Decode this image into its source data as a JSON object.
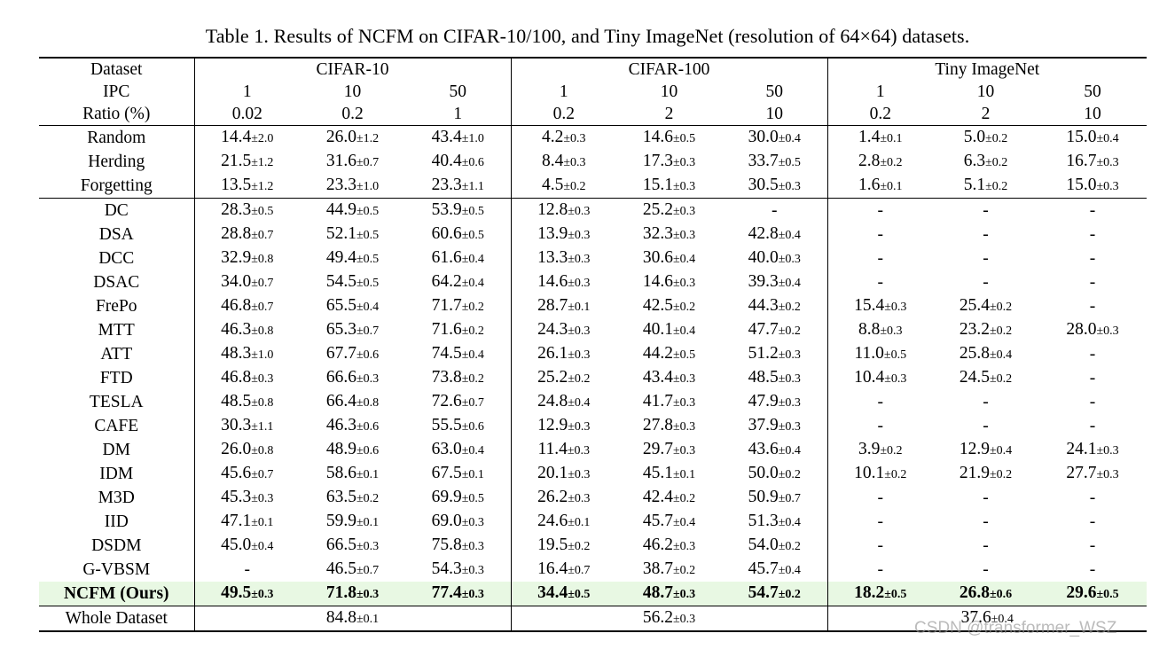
{
  "caption": "Table 1. Results of NCFM on CIFAR-10/100, and Tiny ImageNet (resolution of 64×64) datasets.",
  "header": {
    "dataset_label": "Dataset",
    "ipc_label": "IPC",
    "ratio_label": "Ratio (%)",
    "groups": [
      {
        "name": "CIFAR-10",
        "ipc": [
          "1",
          "10",
          "50"
        ],
        "ratio": [
          "0.02",
          "0.2",
          "1"
        ]
      },
      {
        "name": "CIFAR-100",
        "ipc": [
          "1",
          "10",
          "50"
        ],
        "ratio": [
          "0.2",
          "2",
          "10"
        ]
      },
      {
        "name": "Tiny ImageNet",
        "ipc": [
          "1",
          "10",
          "50"
        ],
        "ratio": [
          "0.2",
          "2",
          "10"
        ]
      }
    ]
  },
  "baselines": [
    {
      "method": "Random",
      "cells": [
        [
          "14.4",
          "±2.0"
        ],
        [
          "26.0",
          "±1.2"
        ],
        [
          "43.4",
          "±1.0"
        ],
        [
          "4.2",
          "±0.3"
        ],
        [
          "14.6",
          "±0.5"
        ],
        [
          "30.0",
          "±0.4"
        ],
        [
          "1.4",
          "±0.1"
        ],
        [
          "5.0",
          "±0.2"
        ],
        [
          "15.0",
          "±0.4"
        ]
      ]
    },
    {
      "method": "Herding",
      "cells": [
        [
          "21.5",
          "±1.2"
        ],
        [
          "31.6",
          "±0.7"
        ],
        [
          "40.4",
          "±0.6"
        ],
        [
          "8.4",
          "±0.3"
        ],
        [
          "17.3",
          "±0.3"
        ],
        [
          "33.7",
          "±0.5"
        ],
        [
          "2.8",
          "±0.2"
        ],
        [
          "6.3",
          "±0.2"
        ],
        [
          "16.7",
          "±0.3"
        ]
      ]
    },
    {
      "method": "Forgetting",
      "cells": [
        [
          "13.5",
          "±1.2"
        ],
        [
          "23.3",
          "±1.0"
        ],
        [
          "23.3",
          "±1.1"
        ],
        [
          "4.5",
          "±0.2"
        ],
        [
          "15.1",
          "±0.3"
        ],
        [
          "30.5",
          "±0.3"
        ],
        [
          "1.6",
          "±0.1"
        ],
        [
          "5.1",
          "±0.2"
        ],
        [
          "15.0",
          "±0.3"
        ]
      ]
    }
  ],
  "methods": [
    {
      "method": "DC",
      "cells": [
        [
          "28.3",
          "±0.5"
        ],
        [
          "44.9",
          "±0.5"
        ],
        [
          "53.9",
          "±0.5"
        ],
        [
          "12.8",
          "±0.3"
        ],
        [
          "25.2",
          "±0.3"
        ],
        [
          "-",
          ""
        ],
        [
          "-",
          ""
        ],
        [
          "-",
          ""
        ],
        [
          "-",
          ""
        ]
      ]
    },
    {
      "method": "DSA",
      "cells": [
        [
          "28.8",
          "±0.7"
        ],
        [
          "52.1",
          "±0.5"
        ],
        [
          "60.6",
          "±0.5"
        ],
        [
          "13.9",
          "±0.3"
        ],
        [
          "32.3",
          "±0.3"
        ],
        [
          "42.8",
          "±0.4"
        ],
        [
          "-",
          ""
        ],
        [
          "-",
          ""
        ],
        [
          "-",
          ""
        ]
      ]
    },
    {
      "method": "DCC",
      "cells": [
        [
          "32.9",
          "±0.8"
        ],
        [
          "49.4",
          "±0.5"
        ],
        [
          "61.6",
          "±0.4"
        ],
        [
          "13.3",
          "±0.3"
        ],
        [
          "30.6",
          "±0.4"
        ],
        [
          "40.0",
          "±0.3"
        ],
        [
          "-",
          ""
        ],
        [
          "-",
          ""
        ],
        [
          "-",
          ""
        ]
      ]
    },
    {
      "method": "DSAC",
      "cells": [
        [
          "34.0",
          "±0.7"
        ],
        [
          "54.5",
          "±0.5"
        ],
        [
          "64.2",
          "±0.4"
        ],
        [
          "14.6",
          "±0.3"
        ],
        [
          "14.6",
          "±0.3"
        ],
        [
          "39.3",
          "±0.4"
        ],
        [
          "-",
          ""
        ],
        [
          "-",
          ""
        ],
        [
          "-",
          ""
        ]
      ]
    },
    {
      "method": "FrePo",
      "cells": [
        [
          "46.8",
          "±0.7"
        ],
        [
          "65.5",
          "±0.4"
        ],
        [
          "71.7",
          "±0.2"
        ],
        [
          "28.7",
          "±0.1"
        ],
        [
          "42.5",
          "±0.2"
        ],
        [
          "44.3",
          "±0.2"
        ],
        [
          "15.4",
          "±0.3"
        ],
        [
          "25.4",
          "±0.2"
        ],
        [
          "-",
          ""
        ]
      ]
    },
    {
      "method": "MTT",
      "cells": [
        [
          "46.3",
          "±0.8"
        ],
        [
          "65.3",
          "±0.7"
        ],
        [
          "71.6",
          "±0.2"
        ],
        [
          "24.3",
          "±0.3"
        ],
        [
          "40.1",
          "±0.4"
        ],
        [
          "47.7",
          "±0.2"
        ],
        [
          "8.8",
          "±0.3"
        ],
        [
          "23.2",
          "±0.2"
        ],
        [
          "28.0",
          "±0.3"
        ]
      ]
    },
    {
      "method": "ATT",
      "cells": [
        [
          "48.3",
          "±1.0"
        ],
        [
          "67.7",
          "±0.6"
        ],
        [
          "74.5",
          "±0.4"
        ],
        [
          "26.1",
          "±0.3"
        ],
        [
          "44.2",
          "±0.5"
        ],
        [
          "51.2",
          "±0.3"
        ],
        [
          "11.0",
          "±0.5"
        ],
        [
          "25.8",
          "±0.4"
        ],
        [
          "-",
          ""
        ]
      ]
    },
    {
      "method": "FTD",
      "cells": [
        [
          "46.8",
          "±0.3"
        ],
        [
          "66.6",
          "±0.3"
        ],
        [
          "73.8",
          "±0.2"
        ],
        [
          "25.2",
          "±0.2"
        ],
        [
          "43.4",
          "±0.3"
        ],
        [
          "48.5",
          "±0.3"
        ],
        [
          "10.4",
          "±0.3"
        ],
        [
          "24.5",
          "±0.2"
        ],
        [
          "-",
          ""
        ]
      ]
    },
    {
      "method": "TESLA",
      "cells": [
        [
          "48.5",
          "±0.8"
        ],
        [
          "66.4",
          "±0.8"
        ],
        [
          "72.6",
          "±0.7"
        ],
        [
          "24.8",
          "±0.4"
        ],
        [
          "41.7",
          "±0.3"
        ],
        [
          "47.9",
          "±0.3"
        ],
        [
          "-",
          ""
        ],
        [
          "-",
          ""
        ],
        [
          "-",
          ""
        ]
      ]
    },
    {
      "method": "CAFE",
      "cells": [
        [
          "30.3",
          "±1.1"
        ],
        [
          "46.3",
          "±0.6"
        ],
        [
          "55.5",
          "±0.6"
        ],
        [
          "12.9",
          "±0.3"
        ],
        [
          "27.8",
          "±0.3"
        ],
        [
          "37.9",
          "±0.3"
        ],
        [
          "-",
          ""
        ],
        [
          "-",
          ""
        ],
        [
          "-",
          ""
        ]
      ]
    },
    {
      "method": "DM",
      "cells": [
        [
          "26.0",
          "±0.8"
        ],
        [
          "48.9",
          "±0.6"
        ],
        [
          "63.0",
          "±0.4"
        ],
        [
          "11.4",
          "±0.3"
        ],
        [
          "29.7",
          "±0.3"
        ],
        [
          "43.6",
          "±0.4"
        ],
        [
          "3.9",
          "±0.2"
        ],
        [
          "12.9",
          "±0.4"
        ],
        [
          "24.1",
          "±0.3"
        ]
      ]
    },
    {
      "method": "IDM",
      "cells": [
        [
          "45.6",
          "±0.7"
        ],
        [
          "58.6",
          "±0.1"
        ],
        [
          "67.5",
          "±0.1"
        ],
        [
          "20.1",
          "±0.3"
        ],
        [
          "45.1",
          "±0.1"
        ],
        [
          "50.0",
          "±0.2"
        ],
        [
          "10.1",
          "±0.2"
        ],
        [
          "21.9",
          "±0.2"
        ],
        [
          "27.7",
          "±0.3"
        ]
      ]
    },
    {
      "method": "M3D",
      "cells": [
        [
          "45.3",
          "±0.3"
        ],
        [
          "63.5",
          "±0.2"
        ],
        [
          "69.9",
          "±0.5"
        ],
        [
          "26.2",
          "±0.3"
        ],
        [
          "42.4",
          "±0.2"
        ],
        [
          "50.9",
          "±0.7"
        ],
        [
          "-",
          ""
        ],
        [
          "-",
          ""
        ],
        [
          "-",
          ""
        ]
      ]
    },
    {
      "method": "IID",
      "cells": [
        [
          "47.1",
          "±0.1"
        ],
        [
          "59.9",
          "±0.1"
        ],
        [
          "69.0",
          "±0.3"
        ],
        [
          "24.6",
          "±0.1"
        ],
        [
          "45.7",
          "±0.4"
        ],
        [
          "51.3",
          "±0.4"
        ],
        [
          "-",
          ""
        ],
        [
          "-",
          ""
        ],
        [
          "-",
          ""
        ]
      ]
    },
    {
      "method": "DSDM",
      "cells": [
        [
          "45.0",
          "±0.4"
        ],
        [
          "66.5",
          "±0.3"
        ],
        [
          "75.8",
          "±0.3"
        ],
        [
          "19.5",
          "±0.2"
        ],
        [
          "46.2",
          "±0.3"
        ],
        [
          "54.0",
          "±0.2"
        ],
        [
          "-",
          ""
        ],
        [
          "-",
          ""
        ],
        [
          "-",
          ""
        ]
      ]
    },
    {
      "method": "G-VBSM",
      "cells": [
        [
          "-",
          ""
        ],
        [
          "46.5",
          "±0.7"
        ],
        [
          "54.3",
          "±0.3"
        ],
        [
          "16.4",
          "±0.7"
        ],
        [
          "38.7",
          "±0.2"
        ],
        [
          "45.7",
          "±0.4"
        ],
        [
          "-",
          ""
        ],
        [
          "-",
          ""
        ],
        [
          "-",
          ""
        ]
      ]
    }
  ],
  "ours": {
    "method": "NCFM (Ours)",
    "cells": [
      [
        "49.5",
        "±0.3"
      ],
      [
        "71.8",
        "±0.3"
      ],
      [
        "77.4",
        "±0.3"
      ],
      [
        "34.4",
        "±0.5"
      ],
      [
        "48.7",
        "±0.3"
      ],
      [
        "54.7",
        "±0.2"
      ],
      [
        "18.2",
        "±0.5"
      ],
      [
        "26.8",
        "±0.6"
      ],
      [
        "29.6",
        "±0.5"
      ]
    ]
  },
  "whole": {
    "method": "Whole Dataset",
    "cells": [
      [
        "84.8",
        "±0.1"
      ],
      [
        "56.2",
        "±0.3"
      ],
      [
        "37.6",
        "±0.4"
      ]
    ]
  },
  "watermark": "CSDN @transformer_WSZ",
  "colors": {
    "highlight": "#e8f8e3",
    "watermark": "#969696"
  }
}
